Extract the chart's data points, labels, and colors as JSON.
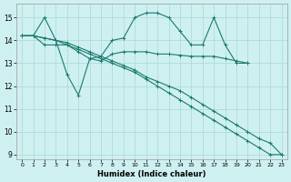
{
  "xlabel": "Humidex (Indice chaleur)",
  "bg_color": "#cff0f0",
  "grid_color": "#a8d8d8",
  "line_color": "#1a7a6e",
  "xlim": [
    -0.5,
    23.5
  ],
  "ylim": [
    8.8,
    15.6
  ],
  "yticks": [
    9,
    10,
    11,
    12,
    13,
    14,
    15
  ],
  "xticks": [
    0,
    1,
    2,
    3,
    4,
    5,
    6,
    7,
    8,
    9,
    10,
    11,
    12,
    13,
    14,
    15,
    16,
    17,
    18,
    19,
    20,
    21,
    22,
    23
  ],
  "line1_x": [
    0,
    1,
    2,
    3,
    4,
    5,
    6,
    7,
    8,
    9,
    10,
    11,
    12,
    13,
    14,
    15,
    16,
    17,
    18,
    19,
    20
  ],
  "line1_y": [
    14.2,
    14.2,
    13.8,
    13.8,
    13.8,
    13.5,
    13.2,
    13.1,
    13.4,
    13.5,
    13.5,
    13.5,
    13.4,
    13.4,
    13.35,
    13.3,
    13.3,
    13.3,
    13.2,
    13.1,
    13.0
  ],
  "line2_x": [
    0,
    1,
    2,
    3,
    4,
    5,
    6,
    7,
    8,
    9,
    10,
    11,
    12,
    13,
    14,
    15,
    16,
    17,
    18,
    19,
    20
  ],
  "line2_y": [
    14.2,
    14.2,
    15.0,
    14.0,
    12.5,
    11.6,
    13.2,
    13.3,
    14.0,
    14.1,
    15.0,
    15.2,
    15.2,
    15.0,
    14.4,
    13.8,
    13.8,
    15.0,
    13.8,
    13.0,
    13.0
  ],
  "line3_x": [
    0,
    1,
    2,
    3,
    4,
    5,
    6,
    7,
    8,
    9,
    10,
    11,
    12,
    13,
    14,
    15,
    16,
    17,
    18,
    19,
    20,
    21,
    22,
    23
  ],
  "line3_y": [
    14.2,
    14.2,
    14.1,
    14.0,
    13.9,
    13.7,
    13.5,
    13.3,
    13.1,
    12.9,
    12.7,
    12.4,
    12.2,
    12.0,
    11.8,
    11.5,
    11.2,
    10.9,
    10.6,
    10.3,
    10.0,
    9.7,
    9.5,
    9.0
  ],
  "line4_x": [
    0,
    1,
    2,
    3,
    4,
    5,
    6,
    7,
    8,
    9,
    10,
    11,
    12,
    13,
    14,
    15,
    16,
    17,
    18,
    19,
    20,
    21,
    22,
    23
  ],
  "line4_y": [
    14.2,
    14.2,
    14.1,
    14.0,
    13.8,
    13.6,
    13.4,
    13.2,
    13.0,
    12.8,
    12.6,
    12.3,
    12.0,
    11.7,
    11.4,
    11.1,
    10.8,
    10.5,
    10.2,
    9.9,
    9.6,
    9.3,
    9.0,
    9.0
  ]
}
